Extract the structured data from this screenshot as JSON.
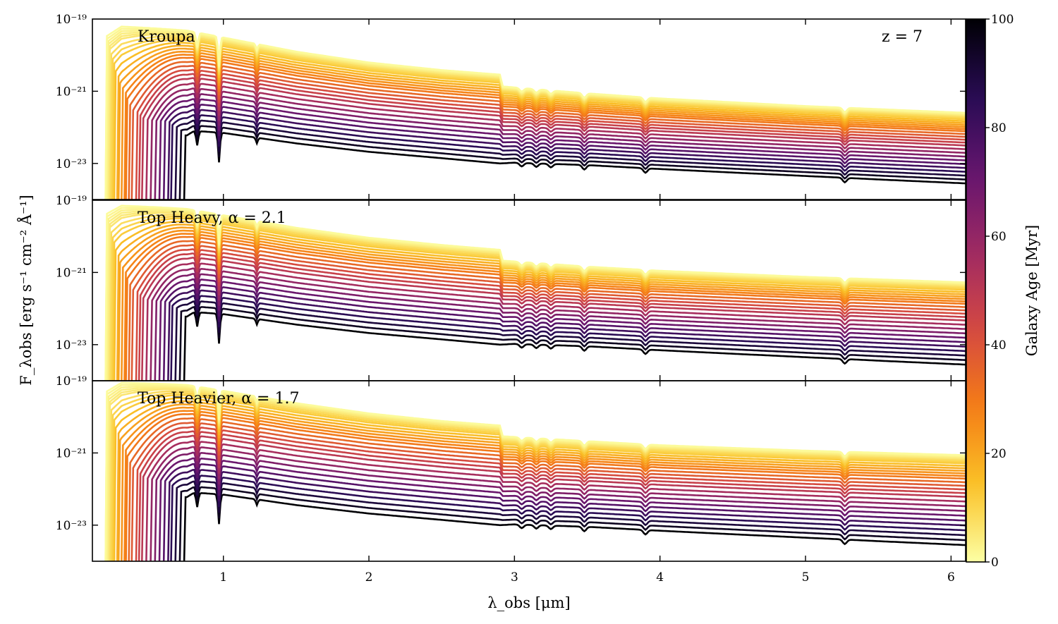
{
  "chart_data": {
    "type": "line",
    "layout": "three stacked panels sharing the x axis, with a vertical colorbar on the right",
    "x_axis": {
      "label": "λ_obs [μm]",
      "xlim": [
        0.1,
        6.1
      ],
      "ticks": [
        1,
        2,
        3,
        4,
        5,
        6
      ],
      "tick_labels": [
        "1",
        "2",
        "3",
        "4",
        "5",
        "6"
      ]
    },
    "y_axis": {
      "label": "F_λobs [erg s⁻¹ cm⁻² Å⁻¹]",
      "scale": "log",
      "ylim": [
        1e-24,
        1e-19
      ],
      "tick_values": [
        1e-21,
        1e-23
      ],
      "tick_labels": [
        "10⁻²¹",
        "10⁻²³"
      ],
      "top_tick_label": "10⁻¹⁹"
    },
    "colorbar": {
      "label": "Galaxy Age [Myr]",
      "colormap": "inferno_r",
      "range": [
        0,
        100
      ],
      "ticks": [
        0,
        20,
        40,
        60,
        80,
        100
      ],
      "tick_labels": [
        "0",
        "20",
        "40",
        "60",
        "80",
        "100"
      ]
    },
    "redshift_label": "z = 7",
    "ages_myr": [
      1,
      2,
      3,
      4,
      5,
      6,
      8,
      10,
      12,
      15,
      18,
      21,
      24,
      27,
      30,
      34,
      38,
      42,
      46,
      50,
      55,
      60,
      65,
      70,
      75,
      80,
      85,
      90,
      95,
      100
    ],
    "panels": [
      {
        "name": "Kroupa",
        "label": "Kroupa",
        "old_population_flux": {
          "x": [
            0.75,
            0.8,
            1.0,
            1.5,
            2.0,
            2.5,
            2.9,
            3.0,
            3.5,
            4.0,
            4.5,
            5.0,
            5.5,
            6.1
          ],
          "y": [
            6e-23,
            8e-23,
            7e-23,
            3.6e-23,
            2.1e-23,
            1.4e-23,
            1e-23,
            1.05e-23,
            9e-24,
            7e-24,
            5.6e-24,
            4.5e-24,
            3.6e-24,
            2.8e-24
          ]
        },
        "young_population_flux": {
          "x": [
            0.2,
            0.3,
            0.5,
            0.75,
            1.0,
            1.5,
            2.0,
            2.5,
            2.9,
            2.92,
            3.5,
            4.0,
            5.0,
            6.1
          ],
          "y": [
            4e-20,
            7e-20,
            6e-20,
            5e-20,
            3.2e-20,
            1.3e-20,
            6.5e-21,
            4e-21,
            3e-21,
            1.4e-21,
            9e-22,
            6.5e-22,
            4e-22,
            2.6e-22
          ]
        }
      },
      {
        "name": "Top Heavy",
        "label": "Top Heavy, α = 2.1",
        "old_population_flux": {
          "x": [
            0.75,
            0.8,
            1.0,
            1.5,
            2.0,
            2.5,
            2.9,
            3.0,
            3.5,
            4.0,
            4.5,
            5.0,
            5.5,
            6.1
          ],
          "y": [
            6e-23,
            8e-23,
            7e-23,
            3.6e-23,
            2.1e-23,
            1.4e-23,
            1e-23,
            1.05e-23,
            9e-24,
            7e-24,
            5.6e-24,
            4.5e-24,
            3.6e-24,
            2.8e-24
          ]
        },
        "young_population_flux": {
          "x": [
            0.2,
            0.3,
            0.5,
            0.75,
            1.0,
            1.5,
            2.0,
            2.5,
            2.9,
            2.92,
            3.5,
            4.0,
            5.0,
            6.1
          ],
          "y": [
            5e-20,
            8e-20,
            7e-20,
            6e-20,
            4e-20,
            1.8e-20,
            9.5e-21,
            6e-21,
            4.4e-21,
            2.2e-21,
            1.5e-21,
            1.15e-21,
            7.8e-22,
            5.5e-22
          ]
        }
      },
      {
        "name": "Top Heavier",
        "label": "Top Heavier, α = 1.7",
        "old_population_flux": {
          "x": [
            0.75,
            0.8,
            1.0,
            1.5,
            2.0,
            2.5,
            2.9,
            3.0,
            3.5,
            4.0,
            4.5,
            5.0,
            5.5,
            6.1
          ],
          "y": [
            6e-23,
            8e-23,
            7e-23,
            3.6e-23,
            2.1e-23,
            1.4e-23,
            1e-23,
            1.05e-23,
            9e-24,
            7e-24,
            5.6e-24,
            4.5e-24,
            3.6e-24,
            2.8e-24
          ]
        },
        "young_population_flux": {
          "x": [
            0.2,
            0.3,
            0.5,
            0.75,
            1.0,
            1.5,
            2.0,
            2.5,
            2.9,
            2.92,
            3.5,
            4.0,
            5.0,
            6.1
          ],
          "y": [
            6e-20,
            1e-19,
            9e-20,
            8e-20,
            5.5e-20,
            2.5e-20,
            1.3e-20,
            8e-21,
            6e-21,
            3e-21,
            2.2e-21,
            1.7e-21,
            1.2e-21,
            9e-22
          ]
        }
      }
    ]
  }
}
